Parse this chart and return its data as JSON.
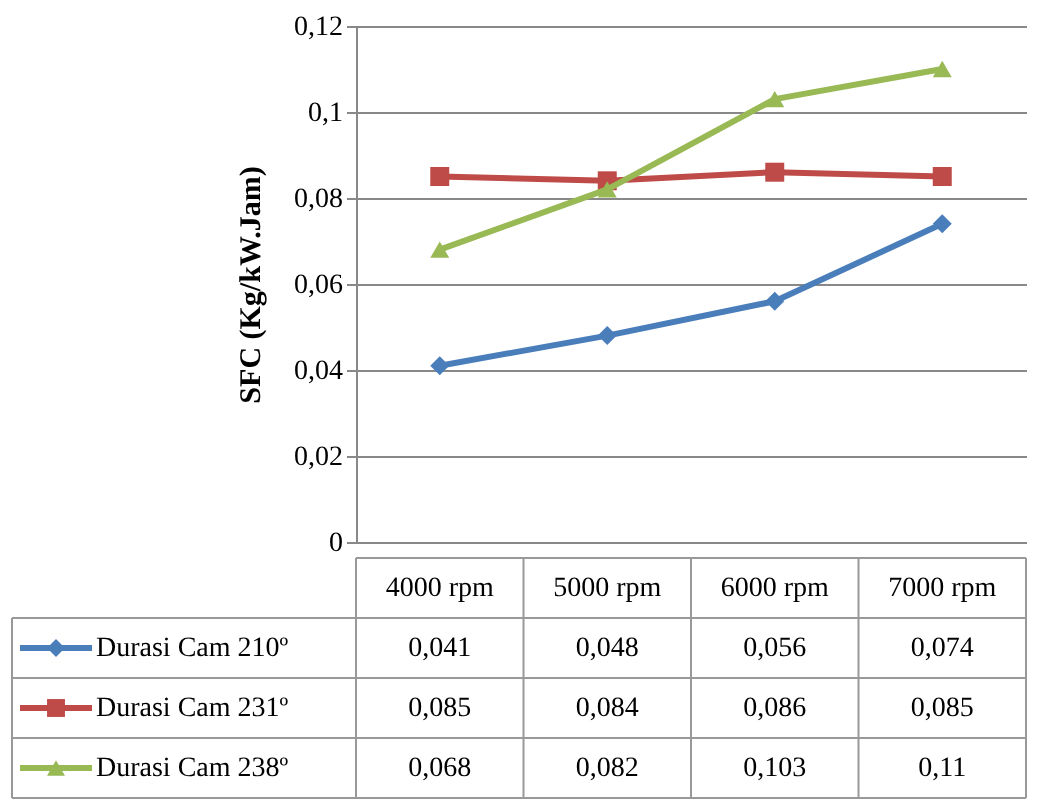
{
  "chart_data": {
    "type": "line",
    "ylabel": "SFC (Kg/kW.Jam)",
    "categories": [
      "4000 rpm",
      "5000 rpm",
      "6000 rpm",
      "7000 rpm"
    ],
    "series": [
      {
        "name": "Durasi Cam 210º",
        "color": "#4a7ebb",
        "marker": "diamond",
        "values": [
          0.041,
          0.048,
          0.056,
          0.074
        ],
        "value_labels": [
          "0,041",
          "0,048",
          "0,056",
          "0,074"
        ]
      },
      {
        "name": "Durasi Cam 231º",
        "color": "#be4b48",
        "marker": "square",
        "values": [
          0.085,
          0.084,
          0.086,
          0.085
        ],
        "value_labels": [
          "0,085",
          "0,084",
          "0,086",
          "0,085"
        ]
      },
      {
        "name": "Durasi Cam 238º",
        "color": "#98b954",
        "marker": "triangle",
        "values": [
          0.068,
          0.082,
          0.103,
          0.11
        ],
        "value_labels": [
          "0,068",
          "0,082",
          "0,103",
          "0,11"
        ]
      }
    ],
    "ylim": [
      0,
      0.12
    ],
    "yticks": [
      {
        "value": 0,
        "label": "0"
      },
      {
        "value": 0.02,
        "label": "0,02"
      },
      {
        "value": 0.04,
        "label": "0,04"
      },
      {
        "value": 0.06,
        "label": "0,06"
      },
      {
        "value": 0.08,
        "label": "0,08"
      },
      {
        "value": 0.1,
        "label": "0,1"
      },
      {
        "value": 0.12,
        "label": "0,12"
      }
    ],
    "grid": "y",
    "legend": "bottom",
    "line_style": "solid"
  }
}
